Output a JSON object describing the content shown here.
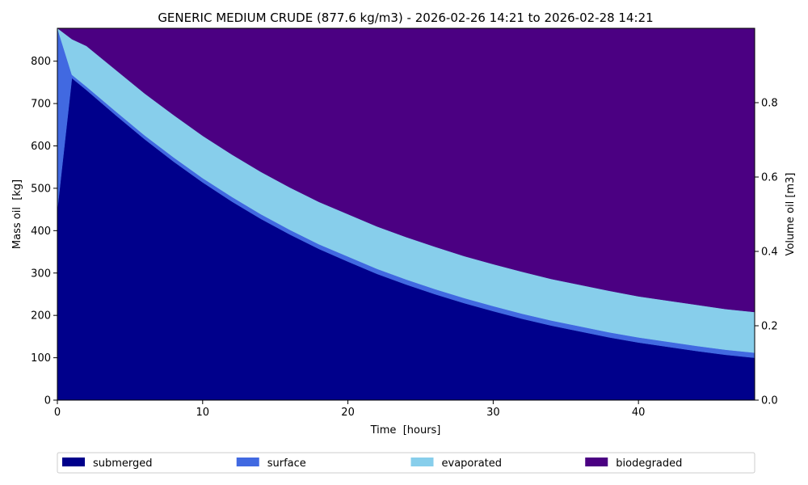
{
  "chart_data": {
    "type": "area",
    "stacked": true,
    "title": "GENERIC MEDIUM CRUDE (877.6 kg/m3) - 2026-02-26 14:21 to 2026-02-28 14:21",
    "xlabel": "Time  [hours]",
    "ylabel": "Mass oil  [kg]",
    "y2label": "Volume oil [m3]",
    "xlim": [
      0,
      48
    ],
    "ylim": [
      0,
      877.6
    ],
    "y2lim": [
      0,
      1.0
    ],
    "xticks": [
      0,
      10,
      20,
      30,
      40
    ],
    "yticks": [
      0,
      100,
      200,
      300,
      400,
      500,
      600,
      700,
      800
    ],
    "y2ticks": [
      0.0,
      0.2,
      0.4,
      0.6,
      0.8
    ],
    "y2ticklabels": [
      "0.0",
      "0.2",
      "0.4",
      "0.6",
      "0.8"
    ],
    "grid": false,
    "legend_position": "bottom",
    "x": [
      0,
      1,
      2,
      4,
      6,
      8,
      10,
      12,
      14,
      16,
      18,
      20,
      22,
      24,
      26,
      28,
      30,
      32,
      34,
      36,
      38,
      40,
      42,
      44,
      46,
      48
    ],
    "series": [
      {
        "name": "submerged",
        "color": "#00008b",
        "values": [
          450,
          760,
          732,
          673,
          616,
          563,
          514,
          469,
          428,
          391,
          357,
          327,
          298,
          273,
          250,
          229,
          210,
          192,
          176,
          162,
          148,
          136,
          126,
          116,
          107,
          100
        ]
      },
      {
        "name": "surface",
        "color": "#4169e1",
        "values": [
          428,
          8,
          8,
          9,
          9,
          10,
          10,
          11,
          11,
          11,
          11,
          12,
          12,
          12,
          12,
          12,
          12,
          12,
          12,
          12,
          12,
          12,
          12,
          12,
          12,
          12
        ]
      },
      {
        "name": "evaporated",
        "color": "#87ceeb",
        "values": [
          0,
          84,
          96,
          98,
          99,
          100,
          100,
          100,
          100,
          100,
          100,
          100,
          100,
          100,
          100,
          99,
          99,
          99,
          98,
          98,
          98,
          97,
          97,
          97,
          96,
          96
        ]
      },
      {
        "name": "biodegraded",
        "color": "#4b0082",
        "values": [
          0,
          26,
          42,
          98,
          154,
          205,
          254,
          298,
          339,
          376,
          410,
          439,
          468,
          493,
          516,
          538,
          557,
          575,
          592,
          606,
          620,
          633,
          643,
          653,
          663,
          670
        ]
      }
    ]
  }
}
